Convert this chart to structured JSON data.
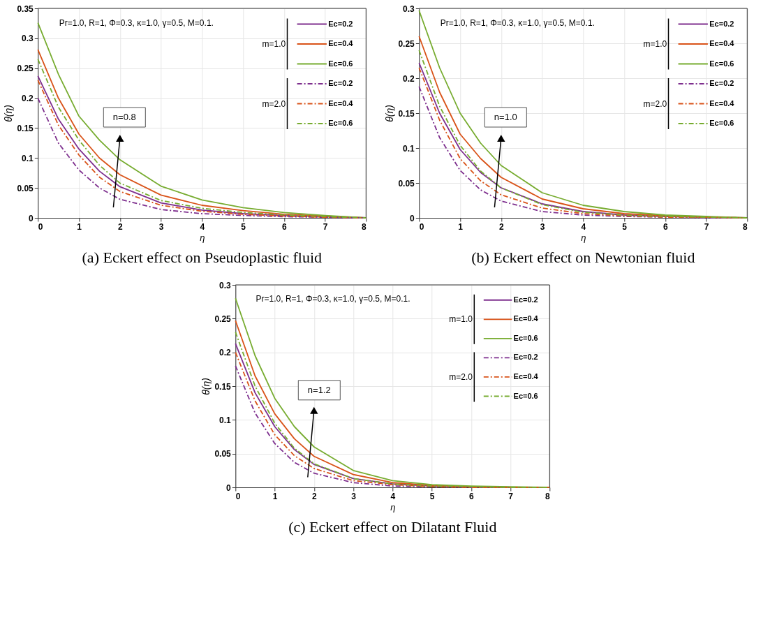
{
  "chart_data": [
    {
      "type": "line",
      "title": "(a) Eckert effect on Pseudoplastic fluid",
      "xlabel": "η",
      "ylabel": "θ(η)",
      "xlim": [
        0,
        8
      ],
      "ylim": [
        0,
        0.35
      ],
      "xticks": [
        0,
        1,
        2,
        3,
        4,
        5,
        6,
        7,
        8
      ],
      "yticks": [
        0,
        0.05,
        0.1,
        0.15,
        0.2,
        0.25,
        0.3,
        0.35
      ],
      "grid": true,
      "legend": "top right",
      "marker": "none",
      "annotations": [
        "Pr=1.0, R=1, Φ=0.3, κ=1.0, γ=0.5, M=0.1.",
        "n=0.8",
        "m=1.0",
        "m=2.0"
      ],
      "x": [
        0,
        0.5,
        1,
        1.5,
        2,
        3,
        4,
        5,
        6,
        7,
        8
      ],
      "series": [
        {
          "name": "Ec=0.2",
          "color": "#7e2f8e",
          "line_style": "solid",
          "values": [
            0.237,
            0.165,
            0.115,
            0.078,
            0.052,
            0.025,
            0.013,
            0.007,
            0.004,
            0.002,
            0
          ]
        },
        {
          "name": "Ec=0.4",
          "color": "#d95319",
          "line_style": "solid",
          "values": [
            0.281,
            0.2,
            0.14,
            0.1,
            0.072,
            0.038,
            0.021,
            0.012,
            0.006,
            0.003,
            0
          ]
        },
        {
          "name": "Ec=0.6",
          "color": "#77ac30",
          "line_style": "solid",
          "values": [
            0.326,
            0.24,
            0.17,
            0.13,
            0.097,
            0.053,
            0.03,
            0.017,
            0.009,
            0.004,
            0
          ]
        },
        {
          "name": "Ec=0.2",
          "color": "#7e2f8e",
          "line_style": "dashed",
          "values": [
            0.2,
            0.125,
            0.08,
            0.05,
            0.031,
            0.014,
            0.007,
            0.004,
            0.002,
            0.001,
            0
          ]
        },
        {
          "name": "Ec=0.4",
          "color": "#d95319",
          "line_style": "dashed",
          "values": [
            0.23,
            0.155,
            0.105,
            0.068,
            0.044,
            0.021,
            0.011,
            0.006,
            0.003,
            0.001,
            0
          ]
        },
        {
          "name": "Ec=0.6",
          "color": "#77ac30",
          "line_style": "dashed",
          "values": [
            0.265,
            0.185,
            0.13,
            0.088,
            0.058,
            0.029,
            0.016,
            0.009,
            0.005,
            0.002,
            0
          ]
        }
      ]
    },
    {
      "type": "line",
      "title": "(b) Eckert effect on Newtonian fluid",
      "xlabel": "η",
      "ylabel": "θ(η)",
      "xlim": [
        0,
        8
      ],
      "ylim": [
        0,
        0.3
      ],
      "xticks": [
        0,
        1,
        2,
        3,
        4,
        5,
        6,
        7,
        8
      ],
      "yticks": [
        0,
        0.05,
        0.1,
        0.15,
        0.2,
        0.25,
        0.3
      ],
      "grid": true,
      "legend": "top right",
      "marker": "none",
      "annotations": [
        "Pr=1.0, R=1, Φ=0.3, κ=1.0, γ=0.5, M=0.1.",
        "n=1.0",
        "m=1.0",
        "m=2.0"
      ],
      "x": [
        0,
        0.5,
        1,
        1.5,
        2,
        3,
        4,
        5,
        6,
        7,
        8
      ],
      "series": [
        {
          "name": "Ec=0.2",
          "color": "#7e2f8e",
          "line_style": "solid",
          "values": [
            0.222,
            0.15,
            0.098,
            0.065,
            0.043,
            0.02,
            0.009,
            0.004,
            0.002,
            0.001,
            0
          ]
        },
        {
          "name": "Ec=0.4",
          "color": "#d95319",
          "line_style": "solid",
          "values": [
            0.26,
            0.18,
            0.12,
            0.085,
            0.058,
            0.027,
            0.013,
            0.006,
            0.003,
            0.001,
            0
          ]
        },
        {
          "name": "Ec=0.6",
          "color": "#77ac30",
          "line_style": "solid",
          "values": [
            0.297,
            0.215,
            0.15,
            0.107,
            0.075,
            0.036,
            0.018,
            0.009,
            0.004,
            0.002,
            0
          ]
        },
        {
          "name": "Ec=0.2",
          "color": "#7e2f8e",
          "line_style": "dashed",
          "values": [
            0.188,
            0.115,
            0.068,
            0.04,
            0.024,
            0.009,
            0.004,
            0.002,
            0.001,
            0,
            0
          ]
        },
        {
          "name": "Ec=0.4",
          "color": "#d95319",
          "line_style": "dashed",
          "values": [
            0.215,
            0.14,
            0.085,
            0.053,
            0.033,
            0.014,
            0.006,
            0.003,
            0.001,
            0.001,
            0
          ]
        },
        {
          "name": "Ec=0.6",
          "color": "#77ac30",
          "line_style": "dashed",
          "values": [
            0.24,
            0.16,
            0.104,
            0.067,
            0.043,
            0.019,
            0.008,
            0.004,
            0.002,
            0.001,
            0
          ]
        }
      ]
    },
    {
      "type": "line",
      "title": "(c) Eckert effect on Dilatant Fluid",
      "xlabel": "η",
      "ylabel": "θ(η)",
      "xlim": [
        0,
        8
      ],
      "ylim": [
        0,
        0.3
      ],
      "xticks": [
        0,
        1,
        2,
        3,
        4,
        5,
        6,
        7,
        8
      ],
      "yticks": [
        0,
        0.05,
        0.1,
        0.15,
        0.2,
        0.25,
        0.3
      ],
      "grid": true,
      "legend": "top right",
      "marker": "none",
      "annotations": [
        "Pr=1.0, R=1, Φ=0.3, κ=1.0, γ=0.5, M=0.1.",
        "n=1.2",
        "m=1.0",
        "m=2.0"
      ],
      "x": [
        0,
        0.5,
        1,
        1.5,
        2,
        3,
        4,
        5,
        6,
        7,
        8
      ],
      "series": [
        {
          "name": "Ec=0.2",
          "color": "#7e2f8e",
          "line_style": "solid",
          "values": [
            0.213,
            0.14,
            0.09,
            0.056,
            0.034,
            0.013,
            0.005,
            0.002,
            0.001,
            0,
            0
          ]
        },
        {
          "name": "Ec=0.4",
          "color": "#d95319",
          "line_style": "solid",
          "values": [
            0.247,
            0.165,
            0.109,
            0.072,
            0.046,
            0.019,
            0.007,
            0.003,
            0.001,
            0,
            0
          ]
        },
        {
          "name": "Ec=0.6",
          "color": "#77ac30",
          "line_style": "solid",
          "values": [
            0.28,
            0.195,
            0.132,
            0.09,
            0.06,
            0.025,
            0.01,
            0.004,
            0.002,
            0.001,
            0
          ]
        },
        {
          "name": "Ec=0.2",
          "color": "#7e2f8e",
          "line_style": "dashed",
          "values": [
            0.18,
            0.11,
            0.065,
            0.037,
            0.021,
            0.007,
            0.002,
            0.001,
            0,
            0,
            0
          ]
        },
        {
          "name": "Ec=0.4",
          "color": "#d95319",
          "line_style": "dashed",
          "values": [
            0.2,
            0.128,
            0.078,
            0.047,
            0.028,
            0.01,
            0.004,
            0.001,
            0,
            0,
            0
          ]
        },
        {
          "name": "Ec=0.6",
          "color": "#77ac30",
          "line_style": "dashed",
          "values": [
            0.23,
            0.15,
            0.095,
            0.058,
            0.035,
            0.013,
            0.005,
            0.002,
            0.001,
            0,
            0
          ]
        }
      ]
    }
  ]
}
